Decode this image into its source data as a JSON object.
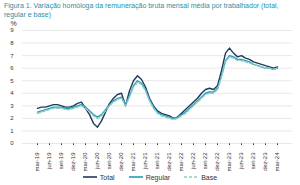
{
  "chart_data": {
    "type": "line",
    "title": "Figura 1. Variação homóloga da remuneração bruta mensal média por trabalhador (total, regular e base)",
    "y_label": "%",
    "categories": [
      "mar-19",
      null,
      null,
      "jun-19",
      null,
      null,
      "set-19",
      null,
      null,
      "dez-19",
      null,
      null,
      "mar-20",
      null,
      null,
      "jun-20",
      null,
      null,
      "set-20",
      null,
      null,
      "dez-20",
      null,
      null,
      "mar-21",
      null,
      null,
      "jun-21",
      null,
      null,
      "set-21",
      null,
      null,
      "dez-21",
      null,
      null,
      "mar-22",
      null,
      null,
      "jun-22",
      null,
      null,
      "set-22",
      null,
      null,
      "dez-22",
      null,
      null,
      "mar-23",
      null,
      null,
      "jun-23",
      null,
      null,
      "set-23",
      null,
      null,
      "dez-23",
      null,
      null,
      "mar-24"
    ],
    "series": [
      {
        "name": "Total",
        "color": "#1f3b5c",
        "line_style": "solid",
        "values": [
          2.8,
          2.9,
          2.9,
          3.0,
          3.1,
          3.1,
          3.0,
          2.9,
          2.9,
          3.0,
          3.2,
          3.3,
          2.8,
          2.3,
          1.6,
          1.3,
          1.8,
          2.5,
          3.2,
          3.6,
          3.9,
          4.0,
          3.0,
          4.2,
          5.0,
          5.4,
          5.1,
          4.5,
          3.6,
          3.0,
          2.6,
          2.4,
          2.3,
          2.2,
          2.0,
          2.1,
          2.4,
          2.7,
          3.0,
          3.3,
          3.6,
          4.0,
          4.3,
          4.4,
          4.3,
          4.6,
          5.8,
          7.2,
          7.6,
          7.2,
          6.9,
          7.0,
          6.8,
          6.7,
          6.5,
          6.4,
          6.3,
          6.2,
          6.1,
          6.0,
          6.1
        ]
      },
      {
        "name": "Regular",
        "color": "#2a9db0",
        "line_style": "solid",
        "values": [
          2.5,
          2.6,
          2.7,
          2.8,
          2.9,
          2.9,
          2.9,
          2.8,
          2.8,
          2.9,
          3.0,
          3.1,
          2.9,
          2.6,
          2.3,
          2.1,
          2.3,
          2.7,
          3.1,
          3.4,
          3.6,
          3.7,
          3.1,
          3.8,
          4.6,
          5.0,
          4.8,
          4.3,
          3.5,
          2.9,
          2.5,
          2.3,
          2.2,
          2.1,
          2.0,
          2.1,
          2.3,
          2.5,
          2.8,
          3.1,
          3.4,
          3.7,
          4.0,
          4.1,
          4.1,
          4.4,
          5.4,
          6.6,
          7.0,
          6.9,
          6.7,
          6.7,
          6.6,
          6.5,
          6.3,
          6.2,
          6.1,
          6.0,
          6.0,
          5.9,
          6.0
        ]
      },
      {
        "name": "Base",
        "color": "#8ccbc9",
        "line_style": "dashed",
        "values": [
          2.4,
          2.5,
          2.6,
          2.7,
          2.8,
          2.8,
          2.8,
          2.7,
          2.7,
          2.8,
          2.9,
          3.0,
          2.8,
          2.5,
          2.2,
          2.0,
          2.2,
          2.6,
          3.0,
          3.3,
          3.5,
          3.6,
          3.0,
          3.7,
          4.5,
          4.9,
          4.7,
          4.2,
          3.4,
          2.8,
          2.4,
          2.2,
          2.1,
          2.0,
          1.9,
          2.0,
          2.2,
          2.4,
          2.7,
          3.0,
          3.3,
          3.6,
          3.9,
          4.0,
          4.0,
          4.3,
          5.3,
          6.5,
          6.9,
          6.8,
          6.6,
          6.6,
          6.5,
          6.4,
          6.3,
          6.2,
          6.1,
          6.0,
          6.0,
          5.9,
          6.0
        ]
      }
    ],
    "ylim": [
      0,
      9
    ],
    "yticks": [
      0,
      1,
      2,
      3,
      4,
      5,
      6,
      7,
      8,
      9
    ],
    "grid": true,
    "legend": "bottom"
  }
}
